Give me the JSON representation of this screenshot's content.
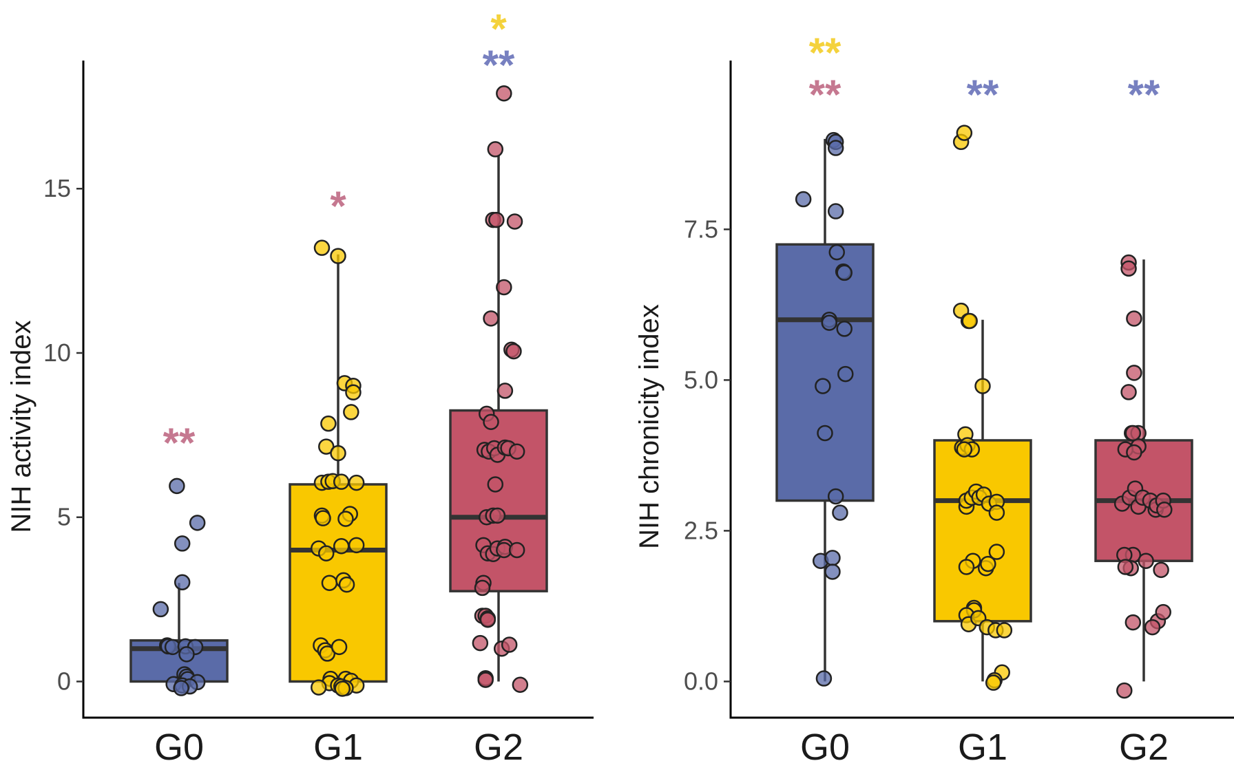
{
  "colors": {
    "G0": "#5a6ba8",
    "G1": "#f9c800",
    "G2": "#c35468",
    "star_pink": "#c57890",
    "star_blue": "#7780c0",
    "star_yellow": "#f4d23c",
    "outline": "#333333"
  },
  "chart_data": [
    {
      "type": "box",
      "ylabel": "NIH activity index",
      "categories": [
        "G0",
        "G1",
        "G2"
      ],
      "ylim": [
        -1.1,
        18.9
      ],
      "yticks": [
        0,
        5,
        10,
        15
      ],
      "ytick_labels": [
        "0",
        "5",
        "10",
        "15"
      ],
      "boxes": [
        {
          "name": "G0",
          "q1": 0,
          "median": 1,
          "q3": 1.25,
          "whisker_low": 0,
          "whisker_high": 3
        },
        {
          "name": "G1",
          "q1": 0,
          "median": 4,
          "q3": 6,
          "whisker_low": 0,
          "whisker_high": 13
        },
        {
          "name": "G2",
          "q1": 2.75,
          "median": 5,
          "q3": 8.25,
          "whisker_low": 0,
          "whisker_high": 16
        }
      ],
      "points": [
        [
          [
            -0.02,
            5.95
          ],
          [
            0.17,
            4.83
          ],
          [
            0.03,
            4.2
          ],
          [
            0.03,
            3.02
          ],
          [
            -0.17,
            2.2
          ],
          [
            -0.11,
            1.1
          ],
          [
            -0.1,
            1.07
          ],
          [
            -0.06,
            1.05
          ],
          [
            0.06,
            1.07
          ],
          [
            0.15,
            1.05
          ],
          [
            0.07,
            0.83
          ],
          [
            0.05,
            0.22
          ],
          [
            0.07,
            0.15
          ],
          [
            0.08,
            0.07
          ],
          [
            -0.05,
            -0.08
          ],
          [
            0.17,
            -0.02
          ],
          [
            0.03,
            -0.12
          ],
          [
            0.1,
            -0.15
          ],
          [
            0.02,
            -0.2
          ]
        ],
        [
          [
            -0.15,
            13.2
          ],
          [
            0,
            12.95
          ],
          [
            0.06,
            9.08
          ],
          [
            0.14,
            9
          ],
          [
            0.14,
            8.8
          ],
          [
            0.12,
            8.2
          ],
          [
            -0.09,
            7.85
          ],
          [
            -0.11,
            7.15
          ],
          [
            0,
            6.95
          ],
          [
            -0.15,
            6.05
          ],
          [
            -0.09,
            6.08
          ],
          [
            -0.05,
            6.1
          ],
          [
            0.03,
            6.08
          ],
          [
            0.17,
            6.05
          ],
          [
            -0.15,
            5.05
          ],
          [
            -0.14,
            4.97
          ],
          [
            0.11,
            5.1
          ],
          [
            0.07,
            4.95
          ],
          [
            -0.18,
            4.05
          ],
          [
            -0.11,
            3.9
          ],
          [
            0.03,
            4.12
          ],
          [
            0.17,
            4.15
          ],
          [
            -0.08,
            3
          ],
          [
            0.05,
            3.08
          ],
          [
            0.08,
            2.95
          ],
          [
            -0.16,
            1.1
          ],
          [
            -0.12,
            0.95
          ],
          [
            -0.1,
            0.85
          ],
          [
            0.01,
            1.05
          ],
          [
            -0.07,
            0.08
          ],
          [
            0.07,
            0.08
          ],
          [
            0.12,
            0.02
          ],
          [
            -0.08,
            -0.05
          ],
          [
            0,
            -0.12
          ],
          [
            0.03,
            -0.15
          ],
          [
            0.17,
            -0.12
          ],
          [
            -0.18,
            -0.18
          ],
          [
            0.07,
            -0.2
          ],
          [
            0.04,
            -0.22
          ]
        ],
        [
          [
            0.05,
            17.9
          ],
          [
            -0.03,
            16.2
          ],
          [
            -0.05,
            14.05
          ],
          [
            -0.02,
            14.05
          ],
          [
            0.15,
            14
          ],
          [
            0.05,
            12
          ],
          [
            -0.07,
            11.05
          ],
          [
            0.12,
            10.1
          ],
          [
            0.14,
            10.05
          ],
          [
            0.06,
            8.85
          ],
          [
            -0.11,
            8.15
          ],
          [
            -0.07,
            7.9
          ],
          [
            -0.13,
            7.05
          ],
          [
            -0.09,
            7
          ],
          [
            -0.04,
            7.1
          ],
          [
            -0.01,
            6.9
          ],
          [
            0.06,
            7.12
          ],
          [
            0.09,
            7.1
          ],
          [
            0.17,
            7
          ],
          [
            -0.03,
            6
          ],
          [
            -0.11,
            5
          ],
          [
            -0.05,
            5.05
          ],
          [
            -0.01,
            5.05
          ],
          [
            -0.14,
            4.15
          ],
          [
            -0.1,
            3.9
          ],
          [
            -0.05,
            3.88
          ],
          [
            -0.01,
            4.05
          ],
          [
            0.06,
            4.1
          ],
          [
            0.05,
            4.0
          ],
          [
            0.17,
            4.0
          ],
          [
            -0.14,
            3.0
          ],
          [
            -0.15,
            2.85
          ],
          [
            -0.15,
            2
          ],
          [
            -0.12,
            2
          ],
          [
            -0.1,
            1.92
          ],
          [
            -0.1,
            1.88
          ],
          [
            -0.17,
            1.17
          ],
          [
            0.03,
            1.0
          ],
          [
            0.1,
            1.12
          ],
          [
            -0.12,
            0.1
          ],
          [
            -0.12,
            0.05
          ],
          [
            0.2,
            -0.1
          ]
        ]
      ],
      "annotations": [
        {
          "x": 0,
          "y": 7.3,
          "text": "**",
          "color": "star_pink"
        },
        {
          "x": 1,
          "y": 14.5,
          "text": "*",
          "color": "star_pink"
        },
        {
          "x": 2,
          "y": 18.8,
          "text": "**",
          "color": "star_blue"
        },
        {
          "x": 2,
          "y": 19.9,
          "text": "*",
          "color": "star_yellow"
        }
      ]
    },
    {
      "type": "box",
      "ylabel": "NIH chronicity index",
      "categories": [
        "G0",
        "G1",
        "G2"
      ],
      "ylim": [
        -0.6,
        10.3
      ],
      "yticks": [
        0,
        2.5,
        5,
        7.5
      ],
      "ytick_labels": [
        "0.0",
        "2.5",
        "5.0",
        "7.5"
      ],
      "boxes": [
        {
          "name": "G0",
          "q1": 3,
          "median": 6,
          "q3": 7.25,
          "whisker_low": 0,
          "whisker_high": 9
        },
        {
          "name": "G1",
          "q1": 1,
          "median": 3,
          "q3": 4,
          "whisker_low": 0,
          "whisker_high": 6
        },
        {
          "name": "G2",
          "q1": 2,
          "median": 3,
          "q3": 4,
          "whisker_low": 0,
          "whisker_high": 7
        }
      ],
      "points": [
        [
          [
            0.08,
            8.98
          ],
          [
            0.1,
            8.95
          ],
          [
            0.1,
            8.85
          ],
          [
            -0.2,
            8
          ],
          [
            0.1,
            7.8
          ],
          [
            0.11,
            7.12
          ],
          [
            0.17,
            6.8
          ],
          [
            0.18,
            6.78
          ],
          [
            0.04,
            6
          ],
          [
            0.04,
            5.95
          ],
          [
            0.18,
            5.85
          ],
          [
            0.19,
            5.1
          ],
          [
            -0.02,
            4.9
          ],
          [
            0,
            4.12
          ],
          [
            0.1,
            3.07
          ],
          [
            0.14,
            2.8
          ],
          [
            -0.04,
            2
          ],
          [
            0.07,
            2.05
          ],
          [
            0.07,
            1.82
          ],
          [
            -0.01,
            0.05
          ]
        ],
        [
          [
            -0.2,
            8.95
          ],
          [
            -0.17,
            9.1
          ],
          [
            -0.2,
            6.15
          ],
          [
            -0.13,
            5.98
          ],
          [
            -0.12,
            5.98
          ],
          [
            0,
            4.9
          ],
          [
            -0.16,
            4.1
          ],
          [
            -0.19,
            3.88
          ],
          [
            -0.14,
            3.92
          ],
          [
            -0.1,
            3.85
          ],
          [
            -0.17,
            3.85
          ],
          [
            -0.15,
            2.9
          ],
          [
            -0.15,
            3
          ],
          [
            -0.1,
            3.05
          ],
          [
            -0.06,
            3.15
          ],
          [
            -0.03,
            3.05
          ],
          [
            0.01,
            3.1
          ],
          [
            0.06,
            2.95
          ],
          [
            0.13,
            2.98
          ],
          [
            0.13,
            2.8
          ],
          [
            0.13,
            2.15
          ],
          [
            -0.09,
            2
          ],
          [
            -0.15,
            1.9
          ],
          [
            0.03,
            1.88
          ],
          [
            0.05,
            1.95
          ],
          [
            -0.08,
            1.22
          ],
          [
            -0.08,
            1.18
          ],
          [
            -0.15,
            1.1
          ],
          [
            -0.13,
            0.95
          ],
          [
            -0.04,
            1.05
          ],
          [
            0.04,
            0.9
          ],
          [
            0.12,
            0.85
          ],
          [
            0.2,
            0.85
          ],
          [
            0.18,
            0.15
          ],
          [
            0.11,
            0.02
          ],
          [
            0.1,
            -0.02
          ]
        ],
        [
          [
            -0.14,
            6.95
          ],
          [
            -0.14,
            6.85
          ],
          [
            -0.09,
            6.02
          ],
          [
            -0.09,
            5.12
          ],
          [
            -0.14,
            4.8
          ],
          [
            -0.11,
            4.12
          ],
          [
            -0.05,
            4.12
          ],
          [
            -0.05,
            3.9
          ],
          [
            -0.1,
            4.12
          ],
          [
            -0.17,
            3.85
          ],
          [
            -0.09,
            3.8
          ],
          [
            -0.2,
            2.95
          ],
          [
            -0.13,
            3.05
          ],
          [
            -0.08,
            3.2
          ],
          [
            -0.05,
            2.9
          ],
          [
            -0.01,
            3.05
          ],
          [
            0.06,
            3.0
          ],
          [
            0.11,
            2.85
          ],
          [
            0.12,
            2.92
          ],
          [
            0.18,
            3.0
          ],
          [
            0.19,
            2.85
          ],
          [
            -0.1,
            2.1
          ],
          [
            -0.18,
            2.1
          ],
          [
            0.02,
            2.0
          ],
          [
            0.16,
            1.85
          ],
          [
            -0.12,
            1.88
          ],
          [
            -0.17,
            1.9
          ],
          [
            -0.1,
            0.98
          ],
          [
            0.13,
            1.0
          ],
          [
            0.08,
            0.9
          ],
          [
            0.18,
            1.15
          ],
          [
            -0.18,
            -0.15
          ]
        ]
      ],
      "annotations": [
        {
          "x": 0,
          "y": 9.75,
          "text": "**",
          "color": "star_pink"
        },
        {
          "x": 0,
          "y": 10.45,
          "text": "**",
          "color": "star_yellow"
        },
        {
          "x": 1,
          "y": 9.75,
          "text": "**",
          "color": "star_blue"
        },
        {
          "x": 2,
          "y": 9.75,
          "text": "**",
          "color": "star_blue"
        }
      ]
    }
  ]
}
